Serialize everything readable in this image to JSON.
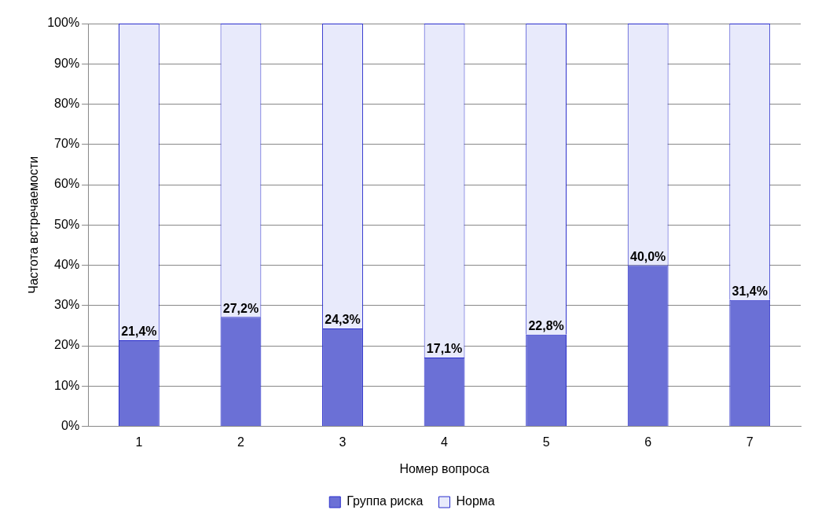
{
  "chart_data": {
    "type": "bar",
    "stacked": true,
    "xlabel": "Номер вопроса",
    "ylabel": "Частота встречаемости",
    "categories": [
      "1",
      "2",
      "3",
      "4",
      "5",
      "6",
      "7"
    ],
    "series": [
      {
        "name": "Группа риска",
        "color": "#6b70d6",
        "values": [
          21.4,
          27.2,
          24.3,
          17.1,
          22.8,
          40.0,
          31.4
        ],
        "value_labels": [
          "21,4%",
          "27,2%",
          "24,3%",
          "17,1%",
          "22,8%",
          "40,0%",
          "31,4%"
        ]
      },
      {
        "name": "Норма",
        "color": "#e8eafb",
        "values": [
          78.6,
          72.8,
          75.7,
          82.9,
          77.2,
          60.0,
          68.6
        ]
      }
    ],
    "ylim": [
      0,
      100
    ],
    "yticks": [
      {
        "value": 0,
        "label": "0%"
      },
      {
        "value": 10,
        "label": "10%"
      },
      {
        "value": 20,
        "label": "20%"
      },
      {
        "value": 30,
        "label": "30%"
      },
      {
        "value": 40,
        "label": "40%"
      },
      {
        "value": 50,
        "label": "50%"
      },
      {
        "value": 60,
        "label": "60%"
      },
      {
        "value": 70,
        "label": "70%"
      },
      {
        "value": 80,
        "label": "80%"
      },
      {
        "value": 90,
        "label": "90%"
      },
      {
        "value": 100,
        "label": "100%"
      }
    ],
    "grid": "y",
    "legend": "bottom"
  }
}
